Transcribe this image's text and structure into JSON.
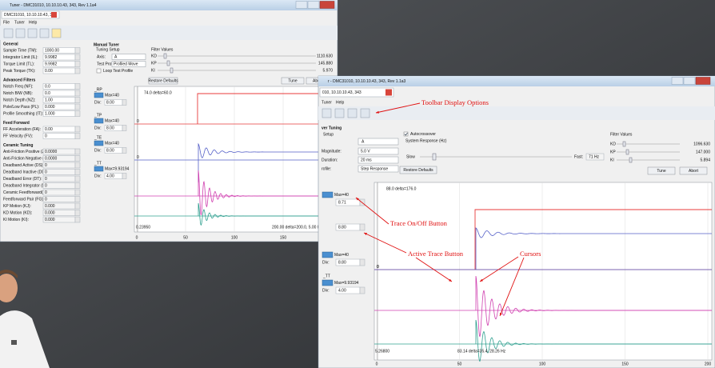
{
  "left_window": {
    "title": "Tuner - DMC31010, 10.10.10.43, 343, Rev 1.1a4",
    "tab": "DMC31010, 10.10.10.43, 343",
    "menu": [
      "File",
      "Tuner",
      "Help"
    ],
    "sections": [
      {
        "heading": "General",
        "fields": [
          {
            "label": "Sample Time (TM):",
            "value": "1000.00"
          },
          {
            "label": "Integrator Limit (IL):",
            "value": "9.9982"
          },
          {
            "label": "Torque Limit (TL):",
            "value": "9.9982"
          },
          {
            "label": "Peak Torque (TK):",
            "value": "0.00"
          }
        ]
      },
      {
        "heading": "Advanced Filters",
        "fields": [
          {
            "label": "Notch Freq (NF):",
            "value": "0.0"
          },
          {
            "label": "Notch B/W (NB):",
            "value": "0.0"
          },
          {
            "label": "Notch Depth (NZ):",
            "value": "1.00"
          },
          {
            "label": "Pole/Low Pass (PL):",
            "value": "0.000"
          },
          {
            "label": "Profile Smoothing (IT):",
            "value": "1.000"
          }
        ]
      },
      {
        "heading": "Feed Forward",
        "fields": [
          {
            "label": "FF Acceleration (FA):",
            "value": "0.00"
          },
          {
            "label": "FF Velocity (FV):",
            "value": "0"
          }
        ]
      },
      {
        "heading": "Ceramic Tuning",
        "fields": [
          {
            "label": "Anti-Friction Positive (ZP):",
            "value": "0.0000"
          },
          {
            "label": "Anti-Friction Negative (ZN):",
            "value": "0.0000"
          },
          {
            "label": "Deadband Active (DS):",
            "value": "0"
          },
          {
            "label": "Deadband Inactive (DD):",
            "value": "0"
          },
          {
            "label": "Deadband Error (DT):",
            "value": "0"
          },
          {
            "label": "Deadband Integrator (DT):",
            "value": "0"
          },
          {
            "label": "Ceramic Feedforward(FC):",
            "value": "0"
          },
          {
            "label": "Feedforward Pair (FG):",
            "value": "0"
          },
          {
            "label": "KP Motion (KJ):",
            "value": "0.000"
          },
          {
            "label": "KD Motion (KD):",
            "value": "0.000"
          },
          {
            "label": "KI Motion (KI):",
            "value": "0.000"
          }
        ]
      }
    ],
    "manual_tuner": {
      "heading": "Manual Tuner",
      "setup": "Tuning Setup",
      "axis_label": "Axis:",
      "axis": "A",
      "profile_label": "Test Profile:",
      "profile": "Profiled Move",
      "loop": "Loop Test Profile"
    },
    "filter_values": {
      "heading": "Filter Values",
      "gains": [
        {
          "label": "KD",
          "value": "1110.630"
        },
        {
          "label": "KP",
          "value": "145.880"
        },
        {
          "label": "KI",
          "value": "5.970"
        }
      ]
    },
    "buttons": {
      "restore": "Restore Defaults",
      "tune": "Tune",
      "abort": "Abort"
    },
    "traces": [
      {
        "name": "_RP",
        "max": "Max=40",
        "div_label": "Div:",
        "div": "8.00"
      },
      {
        "name": "_TP",
        "max": "Max=40",
        "div_label": "Div:",
        "div": "8.00"
      },
      {
        "name": "_TE",
        "max": "Max=40",
        "div_label": "Div:",
        "div": "8.00"
      },
      {
        "name": "_TT",
        "max": "Max=9.93194",
        "div_label": "Div:",
        "div": "4.00"
      }
    ],
    "plot": {
      "cursor_top": "74.0 delta=60.0",
      "cursor_left": "0.23950",
      "cursor_bottom": "200.00 delta=200.0, 5.00 Hz",
      "zero": "0",
      "x_ticks": [
        "0",
        "50",
        "100",
        "150",
        "200"
      ]
    }
  },
  "right_window": {
    "title": "r - DMC31010, 10.10.10.43, 343, Rev 1.1a3",
    "tab": "010, 10.10.10.43, 343",
    "menu": [
      "Tuner",
      "Help"
    ],
    "heading": "ver Tuning",
    "setup": "Setup",
    "axis": "A",
    "settings": [
      {
        "label": "Magnitude:",
        "value": "5.0 V"
      },
      {
        "label": "Duration:",
        "value": "20 ms"
      },
      {
        "label": "rofile:",
        "value": "Step Response"
      }
    ],
    "autocrossover": "Autocrossover",
    "system_response": "System Response (Hz)",
    "slow": "Slow",
    "fast": "Fast:",
    "fast_value": "71 Hz",
    "filter_values": {
      "heading": "Filter Values",
      "gains": [
        {
          "label": "KD",
          "value": "1096.630"
        },
        {
          "label": "KP",
          "value": "147.000"
        },
        {
          "label": "KI",
          "value": "5.894"
        }
      ]
    },
    "buttons": {
      "restore": "Restore Defaults",
      "tune": "Tune",
      "abort": "Abort"
    },
    "traces": [
      {
        "max": "Max=40",
        "div": "8.71"
      },
      {
        "div": "8.80"
      },
      {
        "max": "Max=40",
        "div_label": "Div:",
        "div": "8.80"
      },
      {
        "name": "_TT",
        "max": "Max=9.93194",
        "div_label": "Div:",
        "div": "4.00"
      }
    ],
    "plot": {
      "cursor_top": "88.0 delta=176.0",
      "cursor_left": "5.26800",
      "cursor_bottom": "83.14 delta=35.4, 28.26 Hz",
      "zero": "0",
      "x_ticks": [
        "0",
        "50",
        "100",
        "150",
        "200"
      ]
    }
  },
  "annotations": [
    "Toolbar Display Options",
    "Trace On/Off Button",
    "Active Trace Button",
    "Cursors"
  ]
}
